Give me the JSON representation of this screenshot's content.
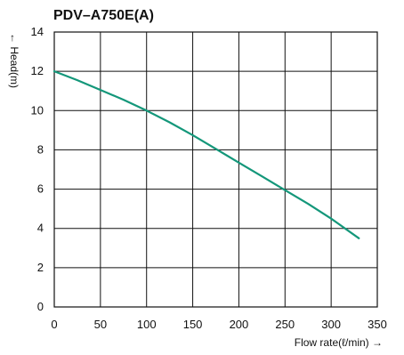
{
  "chart_data": {
    "type": "line",
    "title": "PDV–A750E(A)",
    "xlabel": "Flow rate(ℓ/min) →",
    "ylabel": "← Head(m)",
    "xlim": [
      0,
      350
    ],
    "ylim": [
      0,
      14
    ],
    "xticks": [
      "0",
      "50",
      "100",
      "150",
      "200",
      "250",
      "300",
      "350"
    ],
    "yticks": [
      "0",
      "2",
      "4",
      "6",
      "8",
      "10",
      "12",
      "14"
    ],
    "grid": true,
    "line_color": "#14977a",
    "series": [
      {
        "x": [
          0,
          25,
          50,
          75,
          100,
          125,
          150,
          175,
          200,
          225,
          250,
          275,
          300,
          330
        ],
        "y": [
          12.0,
          11.55,
          11.05,
          10.55,
          10.0,
          9.4,
          8.75,
          8.05,
          7.35,
          6.65,
          5.95,
          5.25,
          4.5,
          3.5
        ]
      }
    ]
  }
}
